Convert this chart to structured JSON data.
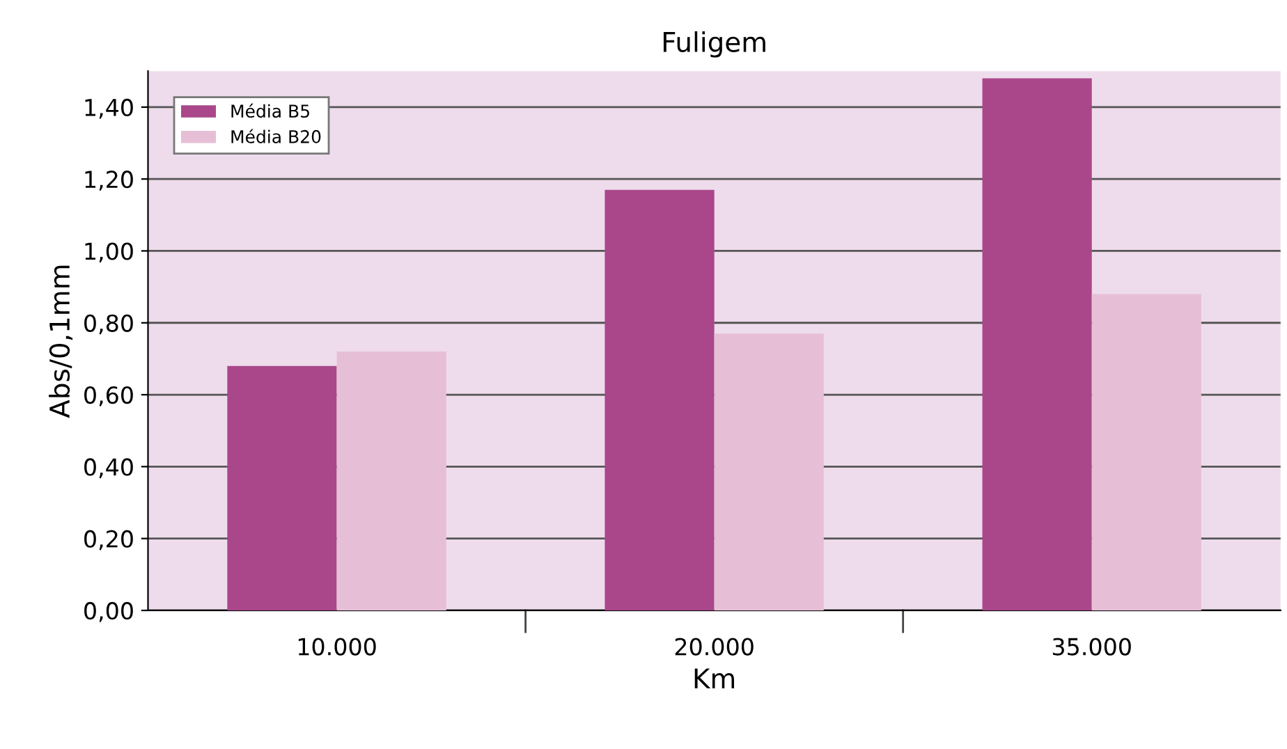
{
  "chart_data": {
    "type": "bar",
    "title": "Fuligem",
    "xlabel": "Km",
    "ylabel": "Abs/0,1mm",
    "categories": [
      "10.000",
      "20.000",
      "35.000"
    ],
    "series": [
      {
        "name": "Média B5",
        "color": "#a9478a",
        "values": [
          0.68,
          1.17,
          1.48
        ]
      },
      {
        "name": "Média B20",
        "color": "#e6bfd6",
        "values": [
          0.72,
          0.77,
          0.88
        ]
      }
    ],
    "ylim": [
      0,
      1.5
    ],
    "yticks": [
      {
        "value": 0,
        "label": "0,00"
      },
      {
        "value": 0.2,
        "label": "0,20"
      },
      {
        "value": 0.4,
        "label": "0,40"
      },
      {
        "value": 0.6,
        "label": "0,60"
      },
      {
        "value": 0.8,
        "label": "0,80"
      },
      {
        "value": 1.0,
        "label": "1,00"
      },
      {
        "value": 1.2,
        "label": "1,20"
      },
      {
        "value": 1.4,
        "label": "1,40"
      }
    ],
    "grid": "y",
    "legend": "top left"
  }
}
